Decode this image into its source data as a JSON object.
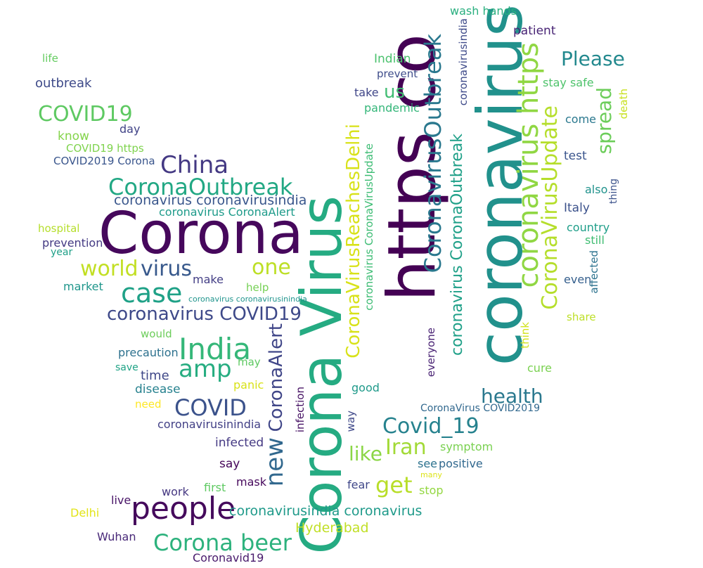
{
  "words": [
    {
      "id": "coronavirus",
      "text": "coronavirus",
      "color": "#21918c"
    },
    {
      "id": "https-co",
      "text": "https co",
      "color": "#440154"
    },
    {
      "id": "corona-virus",
      "text": "Corona Virus",
      "color": "#25ab82"
    },
    {
      "id": "corona",
      "text": "Corona",
      "color": "#46085c"
    },
    {
      "id": "coronavirus-https",
      "text": "coronavirus https",
      "color": "#90d743"
    },
    {
      "id": "coronavirusoutbreak",
      "text": "CoronavirusOutbreak",
      "color": "#2a788e"
    },
    {
      "id": "coronavirusupdate",
      "text": "CoronaVirusUpdate",
      "color": "#b5de2b"
    },
    {
      "id": "coronavirusreachesdelhi",
      "text": "CoronaVirusReachesDelhi",
      "color": "#d8e219"
    },
    {
      "id": "coronavirus-coronaoutbreak",
      "text": "coronavirus CoronaOutbreak",
      "color": "#1fa088"
    },
    {
      "id": "coronaoutbreak",
      "text": "CoronaOutbreak",
      "color": "#22a884"
    },
    {
      "id": "china",
      "text": "China",
      "color": "#443983"
    },
    {
      "id": "people",
      "text": "people",
      "color": "#450a5c"
    },
    {
      "id": "corona-beer",
      "text": "Corona beer",
      "color": "#2db27d"
    },
    {
      "id": "india",
      "text": "India",
      "color": "#35b779"
    },
    {
      "id": "case",
      "text": "case",
      "color": "#1fa187"
    },
    {
      "id": "amp",
      "text": "amp",
      "color": "#27ad81"
    },
    {
      "id": "covid",
      "text": "COVID",
      "color": "#3b528b"
    },
    {
      "id": "covid19",
      "text": "COVID19",
      "color": "#5ec962"
    },
    {
      "id": "world",
      "text": "world",
      "color": "#c2df23"
    },
    {
      "id": "virus",
      "text": "virus",
      "color": "#38598c"
    },
    {
      "id": "one",
      "text": "one",
      "color": "#bddf26"
    },
    {
      "id": "coronavirus-covid19",
      "text": "coronavirus COVID19",
      "color": "#3e4989"
    },
    {
      "id": "new",
      "text": "new",
      "color": "#31688e"
    },
    {
      "id": "coronaalert",
      "text": "CoronaAlert",
      "color": "#404688"
    },
    {
      "id": "covid-19",
      "text": "Covid_19",
      "color": "#26828e"
    },
    {
      "id": "iran",
      "text": "Iran",
      "color": "#a2da37"
    },
    {
      "id": "get",
      "text": "get",
      "color": "#b8de29"
    },
    {
      "id": "like",
      "text": "like",
      "color": "#8bd646"
    },
    {
      "id": "health",
      "text": "health",
      "color": "#2a788e"
    },
    {
      "id": "please",
      "text": "Please",
      "color": "#23898e"
    },
    {
      "id": "spread",
      "text": "spread",
      "color": "#6ccd5a"
    },
    {
      "id": "coronavirus-coronavirusindia",
      "text": "coronavirus coronavirusindia",
      "color": "#39568c"
    },
    {
      "id": "coronavirus-coronaalert",
      "text": "coronavirus CoronaAlert",
      "color": "#1e9b8a"
    },
    {
      "id": "coronavirusindia-coronavirus",
      "text": "coronavirusindia coronavirus",
      "color": "#1f9a8a"
    },
    {
      "id": "hyderabad",
      "text": "Hyderabad",
      "color": "#c0df25"
    },
    {
      "id": "us",
      "text": "us",
      "color": "#40bd72"
    },
    {
      "id": "coronavirus-coronavirusupdate",
      "text": "coronavirus CoronaVirusUpdate",
      "color": "#3dbc74"
    },
    {
      "id": "coronavirusindia-v",
      "text": "coronavirusindia",
      "color": "#3e4a89"
    },
    {
      "id": "wash-hands",
      "text": "wash hands",
      "color": "#29af7f"
    },
    {
      "id": "patient",
      "text": "patient",
      "color": "#482475"
    },
    {
      "id": "indian",
      "text": "Indian",
      "color": "#4ac16d"
    },
    {
      "id": "prevent",
      "text": "prevent",
      "color": "#3e4c8a"
    },
    {
      "id": "take",
      "text": "take",
      "color": "#404688"
    },
    {
      "id": "pandemic",
      "text": "pandemic",
      "color": "#34b679"
    },
    {
      "id": "stay-safe",
      "text": "stay safe",
      "color": "#4ec36b"
    },
    {
      "id": "death",
      "text": "death",
      "color": "#c8e020"
    },
    {
      "id": "come",
      "text": "come",
      "color": "#2a788e"
    },
    {
      "id": "test",
      "text": "test",
      "color": "#3a548c"
    },
    {
      "id": "also",
      "text": "also",
      "color": "#20928c"
    },
    {
      "id": "thing",
      "text": "thing",
      "color": "#3b528b"
    },
    {
      "id": "italy",
      "text": "Italy",
      "color": "#3b518b"
    },
    {
      "id": "country",
      "text": "country",
      "color": "#1f9e89"
    },
    {
      "id": "still",
      "text": "still",
      "color": "#40bd72"
    },
    {
      "id": "affected",
      "text": "affected",
      "color": "#2c728e"
    },
    {
      "id": "even",
      "text": "even",
      "color": "#355f8d"
    },
    {
      "id": "share",
      "text": "share",
      "color": "#bddf26"
    },
    {
      "id": "think",
      "text": "think",
      "color": "#d2e21b"
    },
    {
      "id": "cure",
      "text": "cure",
      "color": "#7ad151"
    },
    {
      "id": "everyone",
      "text": "everyone",
      "color": "#482173"
    },
    {
      "id": "good",
      "text": "good",
      "color": "#1f9a8a"
    },
    {
      "id": "coronavirus-covid2019",
      "text": "CoronaVirus COVID2019",
      "color": "#31688e"
    },
    {
      "id": "way",
      "text": "way",
      "color": "#3f4889"
    },
    {
      "id": "infection",
      "text": "infection",
      "color": "#471365"
    },
    {
      "id": "symptom",
      "text": "symptom",
      "color": "#7ad151"
    },
    {
      "id": "see",
      "text": "see",
      "color": "#2c728e"
    },
    {
      "id": "positive",
      "text": "positive",
      "color": "#31688e"
    },
    {
      "id": "many",
      "text": "many",
      "color": "#dde318"
    },
    {
      "id": "stop",
      "text": "stop",
      "color": "#93d741"
    },
    {
      "id": "fear",
      "text": "fear",
      "color": "#3f4788"
    },
    {
      "id": "life",
      "text": "life",
      "color": "#63cb5f"
    },
    {
      "id": "outbreak",
      "text": "outbreak",
      "color": "#3e4a89"
    },
    {
      "id": "day",
      "text": "day",
      "color": "#404387"
    },
    {
      "id": "know",
      "text": "know",
      "color": "#84d44b"
    },
    {
      "id": "covid19-https",
      "text": "COVID19 https",
      "color": "#7fd34e"
    },
    {
      "id": "covid2019-corona",
      "text": "COVID2019 Corona",
      "color": "#39558c"
    },
    {
      "id": "hospital",
      "text": "hospital",
      "color": "#b5de2b"
    },
    {
      "id": "prevention",
      "text": "prevention",
      "color": "#443a83"
    },
    {
      "id": "year",
      "text": "year",
      "color": "#1fa088"
    },
    {
      "id": "market",
      "text": "market",
      "color": "#1f968b"
    },
    {
      "id": "make",
      "text": "make",
      "color": "#433e85"
    },
    {
      "id": "help",
      "text": "help",
      "color": "#75d054"
    },
    {
      "id": "coronavirus-coronavirusinindia",
      "text": "coronavirus coronavirusinindia",
      "color": "#1f948c"
    },
    {
      "id": "would",
      "text": "would",
      "color": "#6ccd5a"
    },
    {
      "id": "precaution",
      "text": "precaution",
      "color": "#2d718e"
    },
    {
      "id": "save",
      "text": "save",
      "color": "#20a386"
    },
    {
      "id": "time",
      "text": "time",
      "color": "#3f4788"
    },
    {
      "id": "may",
      "text": "may",
      "color": "#5ec962"
    },
    {
      "id": "disease",
      "text": "disease",
      "color": "#26818e"
    },
    {
      "id": "panic",
      "text": "panic",
      "color": "#d8e219"
    },
    {
      "id": "need",
      "text": "need",
      "color": "#fde725"
    },
    {
      "id": "coronavirusinindia",
      "text": "coronavirusinindia",
      "color": "#424086"
    },
    {
      "id": "infected",
      "text": "infected",
      "color": "#443983"
    },
    {
      "id": "say",
      "text": "say",
      "color": "#450559"
    },
    {
      "id": "mask",
      "text": "mask",
      "color": "#46085c"
    },
    {
      "id": "first",
      "text": "first",
      "color": "#5ec962"
    },
    {
      "id": "work",
      "text": "work",
      "color": "#453781"
    },
    {
      "id": "live",
      "text": "live",
      "color": "#481467"
    },
    {
      "id": "delhi",
      "text": "Delhi",
      "color": "#e2e418"
    },
    {
      "id": "wuhan",
      "text": "Wuhan",
      "color": "#482878"
    },
    {
      "id": "coronavid19",
      "text": "Coronavid19",
      "color": "#481a6c"
    }
  ]
}
